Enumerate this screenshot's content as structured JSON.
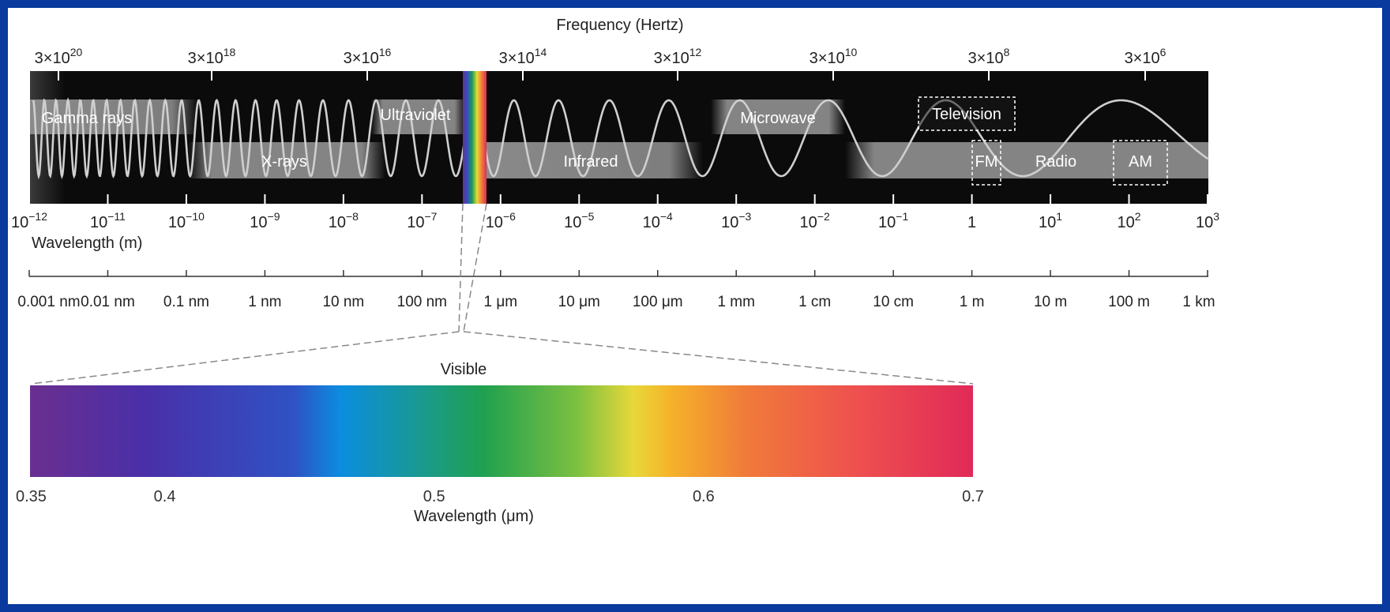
{
  "frequency_axis": {
    "title": "Frequency (Hertz)",
    "ticks": [
      {
        "mantissa": "3×10",
        "exp": "20"
      },
      {
        "mantissa": "3×10",
        "exp": "18"
      },
      {
        "mantissa": "3×10",
        "exp": "16"
      },
      {
        "mantissa": "3×10",
        "exp": "14"
      },
      {
        "mantissa": "3×10",
        "exp": "12"
      },
      {
        "mantissa": "3×10",
        "exp": "10"
      },
      {
        "mantissa": "3×10",
        "exp": "8"
      },
      {
        "mantissa": "3×10",
        "exp": "6"
      }
    ]
  },
  "bands": [
    {
      "label": "Gamma rays"
    },
    {
      "label": "X-rays"
    },
    {
      "label": "Ultraviolet"
    },
    {
      "label": "Infrared"
    },
    {
      "label": "Microwave"
    },
    {
      "label": "Radio"
    }
  ],
  "boxed_bands": [
    {
      "label": "Television"
    },
    {
      "label": "FM"
    },
    {
      "label": "AM"
    }
  ],
  "wavelength_axis": {
    "title": "Wavelength (m)",
    "ticks": [
      {
        "base": "10",
        "exp": "−12"
      },
      {
        "base": "10",
        "exp": "−11"
      },
      {
        "base": "10",
        "exp": "−10"
      },
      {
        "base": "10",
        "exp": "−9"
      },
      {
        "base": "10",
        "exp": "−8"
      },
      {
        "base": "10",
        "exp": "−7"
      },
      {
        "base": "10",
        "exp": "−6"
      },
      {
        "base": "10",
        "exp": "−5"
      },
      {
        "base": "10",
        "exp": "−4"
      },
      {
        "base": "10",
        "exp": "−3"
      },
      {
        "base": "10",
        "exp": "−2"
      },
      {
        "base": "10",
        "exp": "−1"
      },
      {
        "base": "1",
        "exp": ""
      },
      {
        "base": "10",
        "exp": "1"
      },
      {
        "base": "10",
        "exp": "2"
      },
      {
        "base": "10",
        "exp": "3"
      }
    ]
  },
  "length_scale": {
    "ticks": [
      "0.001 nm",
      "0.01 nm",
      "0.1 nm",
      "1 nm",
      "10 nm",
      "100 nm",
      "1 μm",
      "10 μm",
      "100 μm",
      "1 mm",
      "1 cm",
      "10 cm",
      "1 m",
      "10 m",
      "100 m",
      "1 km"
    ]
  },
  "visible": {
    "title": "Visible",
    "axis_title": "Wavelength (μm)",
    "ticks": [
      "0.35",
      "0.4",
      "0.5",
      "0.6",
      "0.7"
    ],
    "tick_values": [
      0.35,
      0.4,
      0.5,
      0.6,
      0.7
    ],
    "range": [
      0.35,
      0.7
    ]
  },
  "colors": {
    "frame": "#0a3a9e",
    "strip": "#0b0b0b",
    "band": "#8a8a8a",
    "wave": "#cfcfcf"
  }
}
